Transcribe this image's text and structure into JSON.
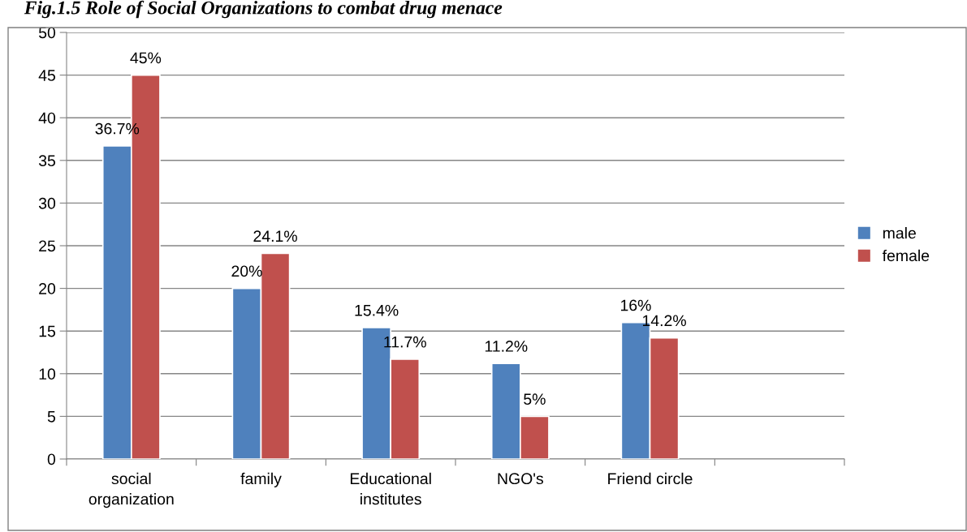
{
  "chart_data": {
    "type": "bar",
    "title": "Fig.1.5 Role of Social Organizations to combat drug menace",
    "categories": [
      "social\norganization",
      "family",
      "Educational\ninstitutes",
      "NGO's",
      "Friend circle",
      null
    ],
    "series": [
      {
        "name": "male",
        "color": "#4f81bd",
        "values": [
          36.7,
          20,
          15.4,
          11.2,
          16,
          null
        ],
        "value_labels": [
          "36.7%",
          "20%",
          "15.4%",
          "11.2%",
          "16%",
          null
        ]
      },
      {
        "name": "female",
        "color": "#c0504d",
        "values": [
          45,
          24.1,
          11.7,
          5,
          14.2,
          null
        ],
        "value_labels": [
          "45%",
          "24.1%",
          "11.7%",
          "5%",
          "14.2%",
          null
        ]
      }
    ],
    "ylim": [
      0,
      50
    ],
    "yticks": [
      0,
      5,
      10,
      15,
      20,
      25,
      30,
      35,
      40,
      45,
      50
    ],
    "grid": "y",
    "legend": "right"
  }
}
